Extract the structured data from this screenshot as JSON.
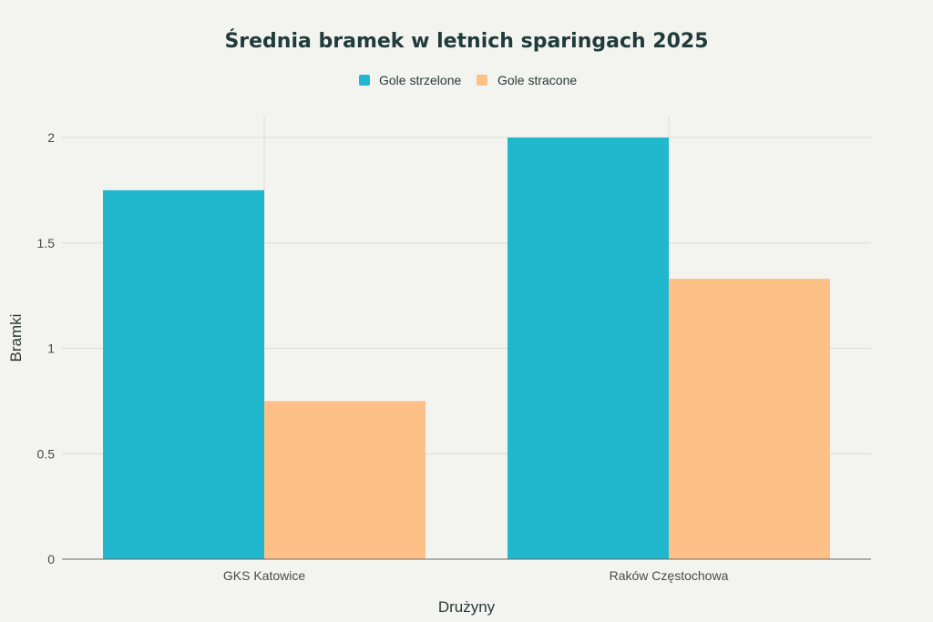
{
  "chart_data": {
    "type": "bar",
    "title": "Średnia bramek w letnich sparingach 2025",
    "xlabel": "Drużyny",
    "ylabel": "Bramki",
    "categories": [
      "GKS Katowice",
      "Raków Częstochowa"
    ],
    "series": [
      {
        "name": "Gole strzelone",
        "values": [
          1.75,
          2.0
        ],
        "color": "#21b8cd"
      },
      {
        "name": "Gole stracone",
        "values": [
          0.75,
          1.33
        ],
        "color": "#fdc086"
      }
    ],
    "ylim": [
      0,
      2.1
    ],
    "yticks": [
      0,
      0.5,
      1,
      1.5,
      2
    ],
    "ytick_labels": [
      "0",
      "0.5",
      "1",
      "1.5",
      "2"
    ],
    "grid": true,
    "legend_position": "top-center"
  }
}
